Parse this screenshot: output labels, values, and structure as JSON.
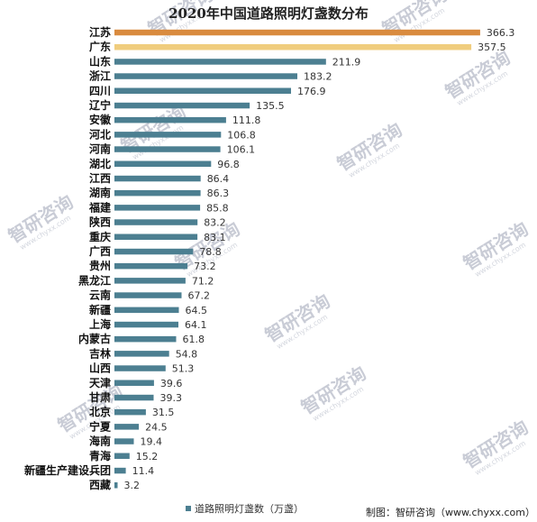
{
  "chart_data": {
    "type": "bar",
    "orientation": "horizontal",
    "title": "2020年中国道路照明灯盏数分布",
    "legend": "道路照明灯盏数（万盏）",
    "legend_position": "bottom",
    "source": "制图：智研咨询（www.chyxx.com）",
    "watermark": "智研咨询",
    "watermark_url": "www.chyxx.com",
    "grid": false,
    "xlim": [
      0,
      370
    ],
    "colors": {
      "default": "#4c7f91",
      "highlight_1": "#d98b3f",
      "highlight_2": "#f0cd7e"
    },
    "categories": [
      "江苏",
      "广东",
      "山东",
      "浙江",
      "四川",
      "辽宁",
      "安徽",
      "河北",
      "河南",
      "湖北",
      "江西",
      "湖南",
      "福建",
      "陕西",
      "重庆",
      "广西",
      "贵州",
      "黑龙江",
      "云南",
      "新疆",
      "上海",
      "内蒙古",
      "吉林",
      "山西",
      "天津",
      "甘肃",
      "北京",
      "宁夏",
      "海南",
      "青海",
      "新疆生产建设兵团",
      "西藏"
    ],
    "values": [
      366.3,
      357.5,
      211.9,
      183.2,
      176.9,
      135.5,
      111.8,
      106.8,
      106.1,
      96.8,
      86.4,
      86.3,
      85.8,
      83.2,
      83.1,
      78.8,
      73.2,
      71.2,
      67.2,
      64.5,
      64.1,
      61.8,
      54.8,
      51.3,
      39.6,
      39.3,
      31.5,
      24.5,
      19.4,
      15.2,
      11.4,
      3.2
    ],
    "value_labels": [
      "366.3",
      "357.5",
      "211.9",
      "183.2",
      "176.9",
      "135.5",
      "111.8",
      "106.8",
      "106.1",
      "96.8",
      "86.4",
      "86.3",
      "85.8",
      "83.2",
      "83.1",
      "78.8",
      "73.2",
      "71.2",
      "67.2",
      "64.5",
      "64.1",
      "61.8",
      "54.8",
      "51.3",
      "39.6",
      "39.3",
      "31.5",
      "24.5",
      "19.4",
      "15.2",
      "11.4",
      "3.2"
    ]
  }
}
